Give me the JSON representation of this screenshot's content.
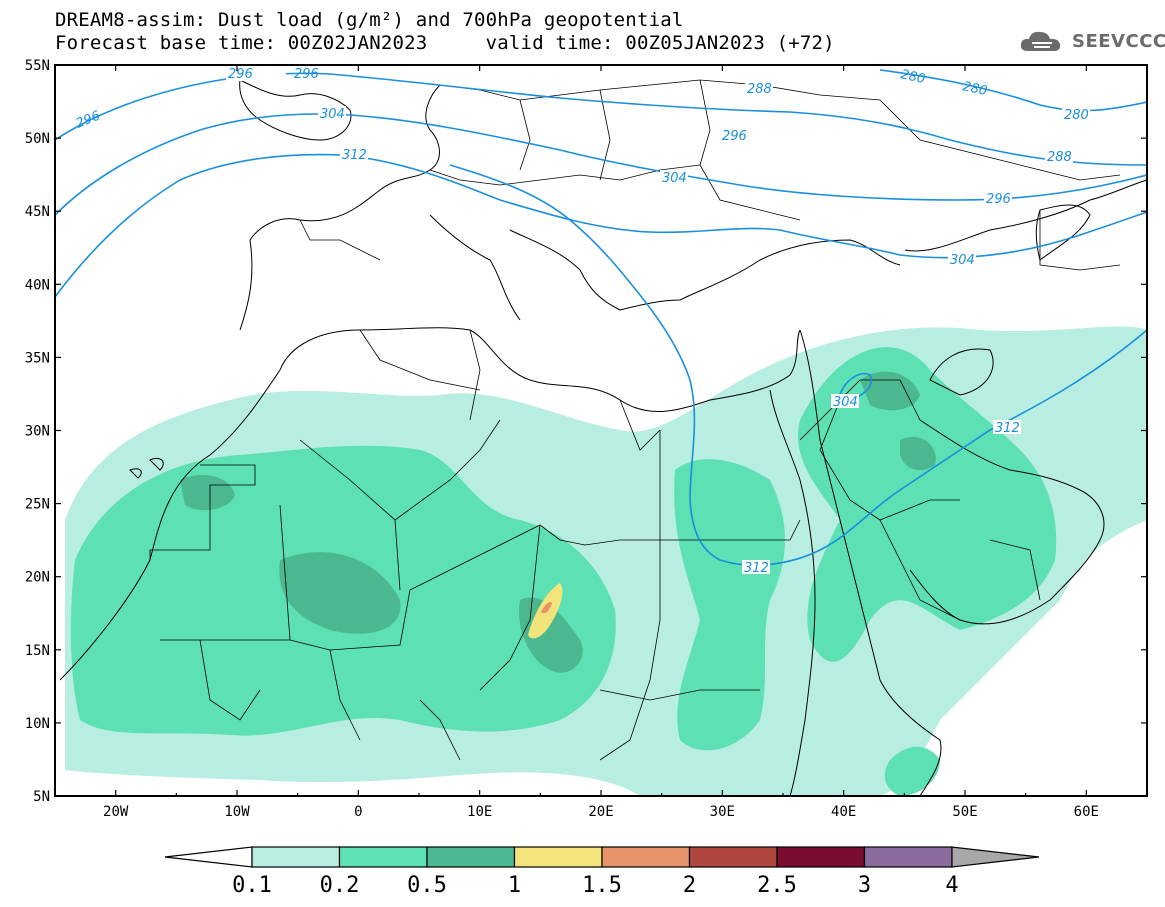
{
  "title": {
    "line1": "DREAM8-assim: Dust load (g/m²) and 700hPa geopotential",
    "line2": "Forecast base time: 00Z02JAN2023     valid time: 00Z05JAN2023 (+72)"
  },
  "logo": {
    "text": "SEEVCCC",
    "icon": "cloud-icon"
  },
  "map": {
    "lon_range": [
      -25,
      65
    ],
    "lat_range": [
      5,
      55
    ],
    "lat_ticks": [
      "55N",
      "50N",
      "45N",
      "40N",
      "35N",
      "30N",
      "25N",
      "20N",
      "15N",
      "10N",
      "5N"
    ],
    "lon_ticks": [
      "20W",
      "10W",
      "0",
      "10E",
      "20E",
      "30E",
      "40E",
      "50E",
      "60E"
    ],
    "contour_color": "#1a8fdc",
    "contour_labels": [
      "296",
      "296",
      "296",
      "304",
      "312",
      "288",
      "296",
      "304",
      "280",
      "280",
      "280",
      "288",
      "296",
      "304",
      "304",
      "312",
      "312"
    ]
  },
  "colorbar": {
    "labels": [
      "0.1",
      "0.2",
      "0.5",
      "1",
      "1.5",
      "2",
      "2.5",
      "3",
      "4"
    ],
    "colors": [
      "#ffffff",
      "#b8eee1",
      "#5ce0b4",
      "#4cb88f",
      "#f2e47a",
      "#e8926a",
      "#b0473e",
      "#7a0c30",
      "#8b6a9e",
      "#a8a8a8"
    ]
  }
}
